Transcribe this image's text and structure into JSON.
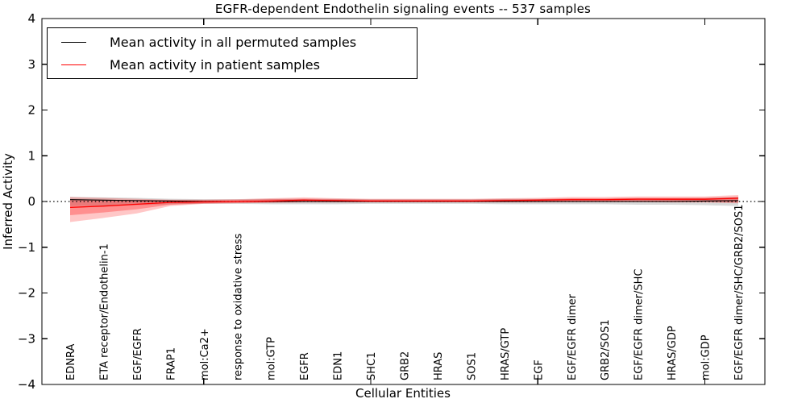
{
  "chart_data": {
    "type": "line",
    "title": "EGFR-dependent Endothelin signaling events -- 537 samples",
    "xlabel": "Cellular Entities",
    "ylabel": "Inferred Activity",
    "ylim": [
      -4,
      4
    ],
    "yticks": [
      -4,
      -3,
      -2,
      -1,
      0,
      1,
      2,
      3,
      4
    ],
    "ytick_labels": [
      "−4",
      "−3",
      "−2",
      "−1",
      "0",
      "1",
      "2",
      "3",
      "4"
    ],
    "grid": false,
    "categories": [
      "EDNRA",
      "ETA receptor/Endothelin-1",
      "EGF/EGFR",
      "FRAP1",
      "mol:Ca2+",
      "response to oxidative stress",
      "mol:GTP",
      "EGFR",
      "EDN1",
      "SHC1",
      "GRB2",
      "HRAS",
      "SOS1",
      "HRAS/GTP",
      "EGF",
      "EGF/EGFR dimer",
      "GRB2/SOS1",
      "EGF/EGFR dimer/SHC",
      "HRAS/GDP",
      "mol:GDP",
      "EGF/EGFR dimer/SHC/GRB2/SOS1"
    ],
    "x_major_tick_indices": [
      4,
      9,
      14,
      19
    ],
    "reference_line": {
      "y": 0,
      "style": "dotted",
      "color": "#000000"
    },
    "legend": {
      "position": "upper left",
      "items": [
        {
          "label": "Mean activity in all permuted samples",
          "color": "#000000"
        },
        {
          "label": "Mean activity in patient samples",
          "color": "#ff0000"
        }
      ]
    },
    "series": [
      {
        "name": "Mean activity in all permuted samples",
        "color": "#000000",
        "width": 1.1,
        "values": [
          0.04,
          0.03,
          0.02,
          0.01,
          0.0,
          0.0,
          0.0,
          0.0,
          0.0,
          0.0,
          0.0,
          0.0,
          0.0,
          0.0,
          0.0,
          0.0,
          0.0,
          0.0,
          0.0,
          0.01,
          0.02
        ]
      },
      {
        "name": "Mean activity in patient samples",
        "color": "#ff0000",
        "width": 1.3,
        "values": [
          -0.13,
          -0.1,
          -0.06,
          -0.02,
          -0.01,
          0.0,
          0.01,
          0.03,
          0.02,
          0.01,
          0.01,
          0.01,
          0.01,
          0.02,
          0.03,
          0.04,
          0.04,
          0.05,
          0.05,
          0.05,
          0.07
        ]
      }
    ],
    "bands": [
      {
        "name": "permuted-samples-std-band",
        "color": "#777777",
        "alpha": 0.28,
        "upper": [
          0.1,
          0.09,
          0.08,
          0.06,
          0.05,
          0.05,
          0.06,
          0.06,
          0.06,
          0.05,
          0.05,
          0.05,
          0.05,
          0.06,
          0.06,
          0.06,
          0.06,
          0.07,
          0.07,
          0.08,
          0.1
        ],
        "lower": [
          -0.1,
          -0.09,
          -0.08,
          -0.06,
          -0.05,
          -0.05,
          -0.06,
          -0.06,
          -0.06,
          -0.05,
          -0.05,
          -0.05,
          -0.05,
          -0.06,
          -0.06,
          -0.06,
          -0.06,
          -0.07,
          -0.07,
          -0.08,
          -0.1
        ]
      },
      {
        "name": "patient-samples-std-band-outer",
        "color": "#ff0000",
        "alpha": 0.22,
        "upper": [
          0.1,
          0.08,
          0.06,
          0.04,
          0.04,
          0.05,
          0.07,
          0.09,
          0.07,
          0.06,
          0.06,
          0.06,
          0.06,
          0.07,
          0.08,
          0.1,
          0.1,
          0.11,
          0.11,
          0.11,
          0.14
        ],
        "lower": [
          -0.45,
          -0.36,
          -0.26,
          -0.1,
          -0.05,
          -0.04,
          -0.03,
          -0.02,
          -0.02,
          -0.02,
          -0.02,
          -0.02,
          -0.02,
          -0.02,
          -0.02,
          -0.01,
          -0.01,
          -0.01,
          -0.02,
          -0.02,
          -0.04
        ]
      },
      {
        "name": "patient-samples-std-band-inner",
        "color": "#ff0000",
        "alpha": 0.28,
        "upper": [
          0.05,
          0.04,
          0.03,
          0.03,
          0.03,
          0.03,
          0.05,
          0.06,
          0.05,
          0.04,
          0.04,
          0.04,
          0.04,
          0.05,
          0.05,
          0.07,
          0.07,
          0.08,
          0.08,
          0.08,
          0.1
        ],
        "lower": [
          -0.3,
          -0.24,
          -0.17,
          -0.07,
          -0.04,
          -0.03,
          -0.02,
          -0.01,
          -0.01,
          -0.01,
          -0.01,
          -0.01,
          -0.01,
          -0.01,
          -0.01,
          -0.01,
          -0.01,
          -0.01,
          -0.01,
          -0.01,
          -0.02
        ]
      }
    ]
  },
  "colors": {
    "background": "#ffffff",
    "axes": "#000000"
  }
}
